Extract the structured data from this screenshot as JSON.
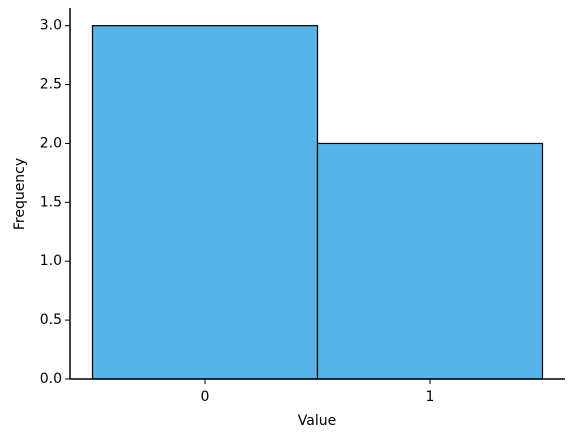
{
  "chart_data": {
    "type": "histogram",
    "x_label": "Value",
    "y_label": "Frequency",
    "bins": [
      -0.5,
      0.5,
      1.5
    ],
    "counts": [
      3,
      2
    ],
    "color": "#56b4e9",
    "edgecolor": "#000000",
    "xlim": [
      -0.6,
      1.6
    ],
    "xticks": [
      0,
      1
    ],
    "ylim": [
      0,
      3.15
    ],
    "yticks": [
      {
        "value": 0,
        "label": "0.0"
      },
      0.5,
      {
        "value": 1,
        "label": "1.0"
      },
      1.5,
      {
        "value": 2,
        "label": "2.0"
      },
      2.5,
      {
        "value": 3,
        "label": "3.0"
      }
    ]
  }
}
